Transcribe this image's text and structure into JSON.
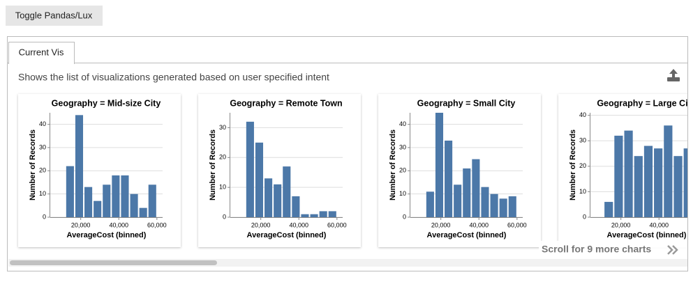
{
  "ui": {
    "toggle_button": "Toggle Pandas/Lux",
    "tab": "Current Vis",
    "description": "Shows the list of visualizations generated based on user specified intent",
    "scroll_hint": "Scroll for 9 more charts"
  },
  "chart_data": [
    {
      "type": "histogram",
      "title": "Geography = Mid-size City",
      "x_label": "AverageCost (binned)",
      "y_label": "Number of Records",
      "color": "#4c78a8",
      "bins": [
        12000,
        16800,
        21600,
        26400,
        31200,
        36000,
        40800,
        45600,
        50400,
        55200,
        60000
      ],
      "counts": [
        22,
        44,
        13,
        7,
        14,
        18,
        18,
        10,
        4,
        14
      ],
      "xlim": [
        4000,
        63000
      ],
      "xticks": [
        {
          "value": 20000,
          "label": "20,000"
        },
        {
          "value": 40000,
          "label": "40,000"
        },
        {
          "value": 60000,
          "label": "60,000"
        }
      ],
      "ylim": [
        0,
        45
      ],
      "yticks": [
        0,
        10,
        20,
        30,
        40
      ],
      "grid": true
    },
    {
      "type": "histogram",
      "title": "Geography = Remote Town",
      "x_label": "AverageCost (binned)",
      "y_label": "Number of Records",
      "color": "#4c78a8",
      "bins": [
        12000,
        16800,
        21600,
        26400,
        31200,
        36000,
        40800,
        45600,
        50400,
        55200,
        60000
      ],
      "counts": [
        32,
        25,
        13,
        11,
        17,
        7,
        1,
        1,
        2,
        2
      ],
      "xlim": [
        4000,
        63000
      ],
      "xticks": [
        {
          "value": 20000,
          "label": "20,000"
        },
        {
          "value": 40000,
          "label": "40,000"
        },
        {
          "value": 60000,
          "label": "60,000"
        }
      ],
      "ylim": [
        0,
        35
      ],
      "yticks": [
        0,
        10,
        20,
        30
      ],
      "grid": true
    },
    {
      "type": "histogram",
      "title": "Geography = Small City",
      "x_label": "AverageCost (binned)",
      "y_label": "Number of Records",
      "color": "#4c78a8",
      "bins": [
        12000,
        16800,
        21600,
        26400,
        31200,
        36000,
        40800,
        45600,
        50400,
        55200,
        60000
      ],
      "counts": [
        11,
        45,
        33,
        14,
        21,
        25,
        13,
        10,
        8,
        9
      ],
      "xlim": [
        4000,
        63000
      ],
      "xticks": [
        {
          "value": 20000,
          "label": "20,000"
        },
        {
          "value": 40000,
          "label": "40,000"
        },
        {
          "value": 60000,
          "label": "60,000"
        }
      ],
      "ylim": [
        0,
        45
      ],
      "yticks": [
        0,
        10,
        20,
        30,
        40
      ],
      "grid": true
    },
    {
      "type": "histogram",
      "title": "Geography = Large City",
      "x_label": "AverageCost (binned)",
      "y_label": "Number of Records",
      "color": "#4c78a8",
      "bins": [
        11000,
        16200,
        21400,
        26600,
        31800,
        37000,
        42200,
        47400,
        52600,
        57800
      ],
      "counts": [
        6,
        32,
        34,
        24,
        28,
        27,
        36,
        24,
        27
      ],
      "xlim": [
        4000,
        63000
      ],
      "xticks": [
        {
          "value": 20000,
          "label": "20,000"
        },
        {
          "value": 40000,
          "label": "40,000"
        }
      ],
      "ylim": [
        0,
        41
      ],
      "yticks": [
        0,
        10,
        20,
        30,
        40
      ],
      "grid": true
    }
  ]
}
